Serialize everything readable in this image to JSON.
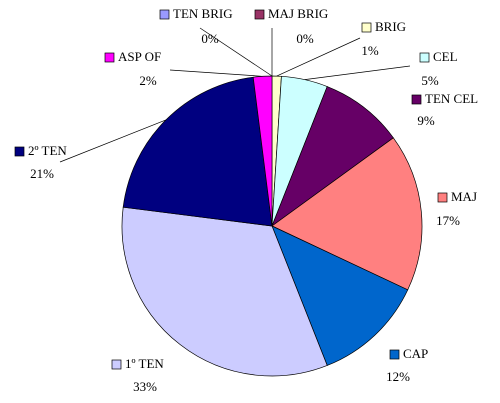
{
  "chart_data": {
    "type": "pie",
    "categories": [
      "TEN BRIG",
      "MAJ BRIG",
      "BRIG",
      "CEL",
      "TEN CEL",
      "MAJ",
      "CAP",
      "1º TEN",
      "2º TEN",
      "ASP OF"
    ],
    "values": [
      0,
      0,
      1,
      5,
      9,
      17,
      12,
      33,
      21,
      2
    ],
    "value_labels": [
      "0%",
      "0%",
      "1%",
      "5%",
      "9%",
      "17%",
      "12%",
      "33%",
      "21%",
      "2%"
    ],
    "colors": [
      "#9999ff",
      "#993366",
      "#ffffcc",
      "#ccffff",
      "#660066",
      "#ff8080",
      "#0066cc",
      "#ccccff",
      "#000080",
      "#ff00ff"
    ]
  }
}
